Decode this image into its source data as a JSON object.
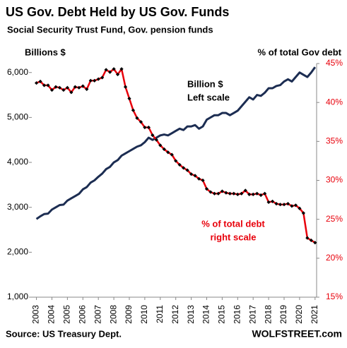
{
  "chart_data": {
    "type": "line",
    "title": "US Gov. Debt Held by US Gov. Funds",
    "subtitle": "Social Security Trust Fund, Gov. pension funds",
    "y_label": "Billions  $",
    "y2_label": "% of total Gov debt",
    "annotations": [
      [
        "Billion $",
        "Left scale"
      ],
      [
        "% of total debt",
        "right scale"
      ]
    ],
    "source": "Source: US Treasury Dept.",
    "credit": "WOLFSTREET.com",
    "x": [
      2003,
      2003.25,
      2003.5,
      2003.75,
      2004,
      2004.25,
      2004.5,
      2004.75,
      2005,
      2005.25,
      2005.5,
      2005.75,
      2006,
      2006.25,
      2006.5,
      2006.75,
      2007,
      2007.25,
      2007.5,
      2007.75,
      2008,
      2008.25,
      2008.5,
      2008.75,
      2009,
      2009.25,
      2009.5,
      2009.75,
      2010,
      2010.25,
      2010.5,
      2010.75,
      2011,
      2011.25,
      2011.5,
      2011.75,
      2012,
      2012.25,
      2012.5,
      2012.75,
      2013,
      2013.25,
      2013.5,
      2013.75,
      2014,
      2014.25,
      2014.5,
      2014.75,
      2015,
      2015.25,
      2015.5,
      2015.75,
      2016,
      2016.25,
      2016.5,
      2016.75,
      2017,
      2017.25,
      2017.5,
      2017.75,
      2018,
      2018.25,
      2018.5,
      2018.75,
      2019,
      2019.25,
      2019.5,
      2019.75,
      2020,
      2020.25,
      2020.5,
      2020.75,
      2021
    ],
    "series": [
      {
        "name": "Billion $",
        "color": "#1c2d52",
        "values": [
          2740,
          2800,
          2850,
          2860,
          2950,
          3000,
          3050,
          3060,
          3150,
          3200,
          3250,
          3300,
          3400,
          3450,
          3550,
          3600,
          3680,
          3750,
          3850,
          3900,
          4000,
          4050,
          4150,
          4200,
          4250,
          4300,
          4350,
          4380,
          4450,
          4550,
          4500,
          4550,
          4600,
          4620,
          4600,
          4650,
          4700,
          4750,
          4720,
          4800,
          4800,
          4830,
          4750,
          4800,
          4950,
          5000,
          5050,
          5050,
          5100,
          5100,
          5050,
          5100,
          5150,
          5250,
          5350,
          5450,
          5400,
          5500,
          5480,
          5550,
          5650,
          5650,
          5700,
          5720,
          5800,
          5850,
          5800,
          5900,
          6000,
          5950,
          5900,
          6000,
          6120
        ]
      },
      {
        "name": "% of total debt",
        "color": "#e8000b",
        "axis": "y2",
        "marker": "diamond",
        "marker_color": "#000000",
        "values": [
          42.5,
          42.7,
          42.2,
          42.2,
          41.6,
          42.0,
          41.9,
          41.6,
          41.9,
          41.3,
          42.0,
          41.9,
          42.1,
          41.7,
          42.8,
          42.8,
          43.0,
          43.2,
          44.2,
          43.9,
          44.3,
          43.6,
          44.3,
          42.0,
          40.5,
          39.0,
          38.0,
          37.5,
          36.8,
          36.8,
          35.8,
          35.2,
          34.5,
          34.0,
          33.6,
          33.3,
          32.5,
          32.0,
          31.6,
          31.3,
          30.8,
          30.6,
          30.2,
          30.0,
          28.9,
          28.5,
          28.3,
          28.3,
          28.6,
          28.4,
          28.3,
          28.3,
          28.2,
          28.3,
          28.7,
          28.2,
          28.2,
          28.3,
          28.1,
          28.3,
          27.2,
          27.3,
          27.0,
          26.9,
          26.9,
          27.0,
          26.7,
          26.8,
          26.4,
          25.8,
          22.6,
          22.3,
          22.0
        ]
      }
    ],
    "xlim": [
      2002.7,
      2021.1
    ],
    "xticks": [
      2003,
      2004,
      2005,
      2006,
      2007,
      2008,
      2009,
      2010,
      2011,
      2012,
      2013,
      2014,
      2015,
      2016,
      2017,
      2018,
      2019,
      2020,
      2021
    ],
    "ylim": [
      1000,
      6200
    ],
    "yticks": [
      {
        "value": 1000,
        "label": "1,000"
      },
      {
        "value": 2000,
        "label": "2,000"
      },
      {
        "value": 3000,
        "label": "3,000"
      },
      {
        "value": 4000,
        "label": "4,000"
      },
      {
        "value": 5000,
        "label": "5,000"
      },
      {
        "value": 6000,
        "label": "6,000"
      }
    ],
    "y2lim": [
      15,
      45
    ],
    "y2ticks": [
      {
        "value": 15,
        "label": "15%"
      },
      {
        "value": 20,
        "label": "20%"
      },
      {
        "value": 25,
        "label": "25%"
      },
      {
        "value": 30,
        "label": "30%"
      },
      {
        "value": 35,
        "label": "35%"
      },
      {
        "value": 40,
        "label": "40%"
      },
      {
        "value": 45,
        "label": "45%"
      }
    ],
    "y2_color": "#e8000b",
    "grid": false
  }
}
